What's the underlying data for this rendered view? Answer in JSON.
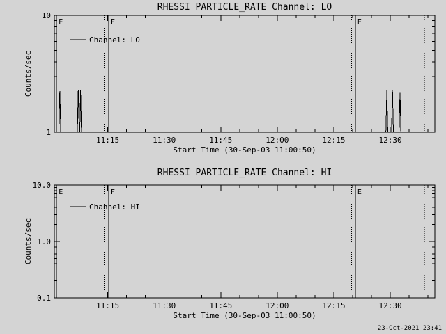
{
  "page": {
    "background": "#d4d4d4",
    "foreground": "#000000"
  },
  "footer": {
    "timestamp": "23-Oct-2021 23:41"
  },
  "chart_data": [
    {
      "type": "line",
      "title": "RHESSI PARTICLE_RATE Channel: LO",
      "xlabel": "Start Time (30-Sep-03 11:00:50)",
      "ylabel": "Counts/sec",
      "yscale": "log",
      "ylim": [
        1,
        10
      ],
      "yticks": [
        {
          "value": 1,
          "label": "1"
        },
        {
          "value": 10,
          "label": "10"
        }
      ],
      "xlim_minutes": [
        0,
        101
      ],
      "xticks": [
        {
          "minute": 14.1667,
          "label": "11:15"
        },
        {
          "minute": 29.1667,
          "label": "11:30"
        },
        {
          "minute": 44.1667,
          "label": "11:45"
        },
        {
          "minute": 59.1667,
          "label": "12:00"
        },
        {
          "minute": 74.1667,
          "label": "12:15"
        },
        {
          "minute": 89.1667,
          "label": "12:30"
        }
      ],
      "legend": {
        "label": "Channel: LO"
      },
      "event_lines": [
        {
          "minute": 0.6,
          "style": "solid",
          "label": "E"
        },
        {
          "minute": 13.2,
          "style": "dotted",
          "label": ""
        },
        {
          "minute": 14.4,
          "style": "solid",
          "label": "F"
        },
        {
          "minute": 78.9,
          "style": "dotted",
          "label": ""
        },
        {
          "minute": 79.9,
          "style": "solid",
          "label": "E"
        },
        {
          "minute": 95.2,
          "style": "dotted",
          "label": ""
        },
        {
          "minute": 98.2,
          "style": "dotted",
          "label": ""
        }
      ],
      "series": [
        {
          "name": "Channel: LO",
          "points": [
            [
              0,
              1
            ],
            [
              1.2,
              1
            ],
            [
              1.45,
              2.25
            ],
            [
              1.7,
              1
            ],
            [
              6.1,
              1
            ],
            [
              6.35,
              2.3
            ],
            [
              6.6,
              1
            ],
            [
              6.75,
              1
            ],
            [
              6.95,
              2.3
            ],
            [
              7.2,
              1
            ],
            [
              88.0,
              1
            ],
            [
              88.25,
              2.3
            ],
            [
              88.5,
              1
            ],
            [
              89.5,
              1
            ],
            [
              89.75,
              2.3
            ],
            [
              90.0,
              1
            ],
            [
              91.5,
              1
            ],
            [
              91.75,
              2.2
            ],
            [
              92.0,
              1
            ],
            [
              101,
              1
            ]
          ]
        }
      ]
    },
    {
      "type": "line",
      "title": "RHESSI PARTICLE_RATE Channel: HI",
      "xlabel": "Start Time (30-Sep-03 11:00:50)",
      "ylabel": "Counts/sec",
      "yscale": "log",
      "ylim": [
        0.1,
        10
      ],
      "yticks": [
        {
          "value": 0.1,
          "label": "0.1"
        },
        {
          "value": 1,
          "label": "1.0"
        },
        {
          "value": 10,
          "label": "10.0"
        }
      ],
      "xlim_minutes": [
        0,
        101
      ],
      "xticks": [
        {
          "minute": 14.1667,
          "label": "11:15"
        },
        {
          "minute": 29.1667,
          "label": "11:30"
        },
        {
          "minute": 44.1667,
          "label": "11:45"
        },
        {
          "minute": 59.1667,
          "label": "12:00"
        },
        {
          "minute": 74.1667,
          "label": "12:15"
        },
        {
          "minute": 89.1667,
          "label": "12:30"
        }
      ],
      "legend": {
        "label": "Channel: HI"
      },
      "event_lines": [
        {
          "minute": 0.6,
          "style": "solid",
          "label": "E"
        },
        {
          "minute": 13.2,
          "style": "dotted",
          "label": ""
        },
        {
          "minute": 14.4,
          "style": "solid",
          "label": "F"
        },
        {
          "minute": 78.9,
          "style": "dotted",
          "label": ""
        },
        {
          "minute": 79.9,
          "style": "solid",
          "label": "E"
        },
        {
          "minute": 95.2,
          "style": "dotted",
          "label": ""
        },
        {
          "minute": 98.2,
          "style": "dotted",
          "label": ""
        }
      ],
      "series": [
        {
          "name": "Channel: HI",
          "points": [
            [
              0,
              0.1
            ],
            [
              101,
              0.1
            ]
          ]
        }
      ]
    }
  ]
}
